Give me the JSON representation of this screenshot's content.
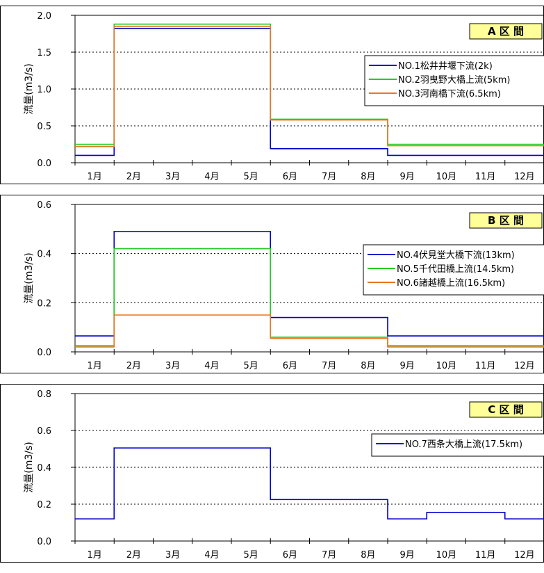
{
  "chart_data": [
    {
      "type": "line",
      "step": true,
      "ylabel": "流量(m3/s)",
      "ylim": [
        0,
        2.0
      ],
      "yticks": [
        "0.0",
        "0.5",
        "1.0",
        "1.5",
        "2.0"
      ],
      "yticks_values": [
        0,
        0.5,
        1.0,
        1.5,
        2.0
      ],
      "categories": [
        "1月",
        "2月",
        "3月",
        "4月",
        "5月",
        "6月",
        "7月",
        "8月",
        "9月",
        "10月",
        "11月",
        "12月"
      ],
      "annotation": "A 区 間",
      "grid": "dotted horizontal",
      "legend_position": "right",
      "series": [
        {
          "name": "NO.1松井井堰下流(2k)",
          "color": "#0000cc",
          "values": [
            0.1,
            1.82,
            1.82,
            1.82,
            1.82,
            0.19,
            0.19,
            0.19,
            0.1,
            0.1,
            0.1,
            0.1
          ]
        },
        {
          "name": "NO.2羽曳野大橋上流(5km)",
          "color": "#22cc22",
          "values": [
            0.25,
            1.88,
            1.88,
            1.88,
            1.88,
            0.59,
            0.59,
            0.59,
            0.25,
            0.25,
            0.25,
            0.25
          ]
        },
        {
          "name": "NO.3河南橋下流(6.5km)",
          "color": "#e87722",
          "values": [
            0.22,
            1.85,
            1.85,
            1.85,
            1.85,
            0.58,
            0.58,
            0.58,
            0.23,
            0.23,
            0.23,
            0.23
          ]
        }
      ]
    },
    {
      "type": "line",
      "step": true,
      "ylabel": "流量(m3/s)",
      "ylim": [
        0,
        0.6
      ],
      "yticks": [
        "0.0",
        "0.2",
        "0.4",
        "0.6"
      ],
      "yticks_values": [
        0,
        0.2,
        0.4,
        0.6
      ],
      "categories": [
        "1月",
        "2月",
        "3月",
        "4月",
        "5月",
        "6月",
        "7月",
        "8月",
        "9月",
        "10月",
        "11月",
        "12月"
      ],
      "annotation": "B 区 間",
      "grid": "dotted horizontal",
      "legend_position": "right",
      "series": [
        {
          "name": "NO.4伏見堂大橋下流(13km)",
          "color": "#0000cc",
          "values": [
            0.065,
            0.49,
            0.49,
            0.49,
            0.49,
            0.14,
            0.14,
            0.14,
            0.065,
            0.065,
            0.065,
            0.065
          ]
        },
        {
          "name": "NO.5千代田橋上流(14.5km)",
          "color": "#22cc22",
          "values": [
            0.025,
            0.42,
            0.42,
            0.42,
            0.42,
            0.06,
            0.06,
            0.06,
            0.025,
            0.025,
            0.025,
            0.025
          ]
        },
        {
          "name": "NO.6諸越橋上流(16.5km)",
          "color": "#e87722",
          "values": [
            0.02,
            0.15,
            0.15,
            0.15,
            0.15,
            0.055,
            0.055,
            0.055,
            0.02,
            0.02,
            0.02,
            0.02
          ]
        }
      ]
    },
    {
      "type": "line",
      "step": true,
      "ylabel": "流量(m3/s)",
      "ylim": [
        0,
        0.8
      ],
      "yticks": [
        "0.0",
        "0.2",
        "0.4",
        "0.6",
        "0.8"
      ],
      "yticks_values": [
        0,
        0.2,
        0.4,
        0.6,
        0.8
      ],
      "categories": [
        "1月",
        "2月",
        "3月",
        "4月",
        "5月",
        "6月",
        "7月",
        "8月",
        "9月",
        "10月",
        "11月",
        "12月"
      ],
      "annotation": "C 区 間",
      "grid": "dotted horizontal",
      "legend_position": "right",
      "series": [
        {
          "name": "NO.7西条大橋上流(17.5km)",
          "color": "#0000cc",
          "values": [
            0.12,
            0.505,
            0.505,
            0.505,
            0.505,
            0.225,
            0.225,
            0.225,
            0.12,
            0.155,
            0.155,
            0.12
          ]
        }
      ]
    }
  ]
}
